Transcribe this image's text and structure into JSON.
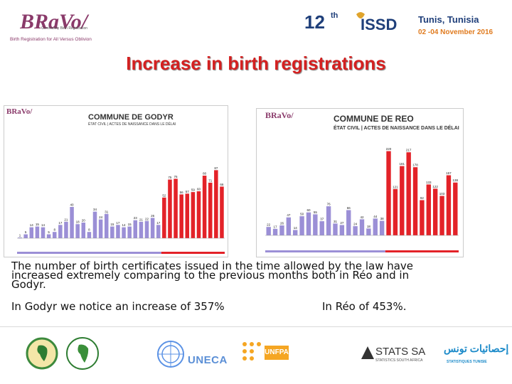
{
  "header": {
    "bravo_logo_text": "BRaVo/",
    "bravo_small": "Community Birth Registration",
    "bravo_tagline": "Birth Registration for All Versus Oblivion",
    "conference_number": "12",
    "conference_suffix": "th",
    "conference_logo": "ISSD",
    "conference_city": "Tunis, Tunisia",
    "conference_dates": "02 -04 November 2016"
  },
  "title": "Increase in birth registrations",
  "charts": [
    {
      "logo": "BRaVo/",
      "title": "COMMUNE DE GODYR",
      "subtitle": "ÉTAT CIVIL | ACTES DE NAISSANCE DANS LE DÉLAI"
    },
    {
      "logo": "BRaVo/",
      "title": "COMMUNE DE REO",
      "subtitle": "ÉTAT CIVIL | ACTES DE NAISSANCE DANS LE DÉLAI"
    }
  ],
  "chart_data": [
    {
      "type": "bar",
      "title": "COMMUNE DE GODYR",
      "subtitle": "ÉTAT CIVIL | ACTES DE NAISSANCE DANS LE DÉLAI",
      "values": [
        1,
        5,
        14,
        15,
        14,
        5,
        8,
        17,
        21,
        40,
        18,
        20,
        8,
        34,
        24,
        31,
        15,
        17,
        14,
        15,
        23,
        21,
        22,
        26,
        17,
        52,
        75,
        76,
        56,
        57,
        59,
        60,
        80,
        71,
        87,
        66
      ],
      "colors": [
        "#9b8fd6",
        "#9b8fd6",
        "#9b8fd6",
        "#9b8fd6",
        "#9b8fd6",
        "#9b8fd6",
        "#9b8fd6",
        "#9b8fd6",
        "#9b8fd6",
        "#9b8fd6",
        "#9b8fd6",
        "#9b8fd6",
        "#9b8fd6",
        "#9b8fd6",
        "#9b8fd6",
        "#9b8fd6",
        "#9b8fd6",
        "#9b8fd6",
        "#9b8fd6",
        "#9b8fd6",
        "#9b8fd6",
        "#9b8fd6",
        "#9b8fd6",
        "#9b8fd6",
        "#9b8fd6",
        "#e32228",
        "#e32228",
        "#e32228",
        "#e32228",
        "#e32228",
        "#e32228",
        "#e32228",
        "#e32228",
        "#e32228",
        "#e32228",
        "#e32228"
      ],
      "ylim": [
        0,
        100
      ]
    },
    {
      "type": "bar",
      "title": "COMMUNE DE REO",
      "subtitle": "ÉTAT CIVIL | ACTES DE NAISSANCE DANS LE DÉLAI",
      "values": [
        22,
        17,
        26,
        47,
        14,
        50,
        60,
        55,
        37,
        76,
        31,
        27,
        66,
        24,
        42,
        18,
        44,
        38,
        220,
        121,
        181,
        217,
        178,
        92,
        133,
        122,
        103,
        157,
        138
      ],
      "colors": [
        "#9b8fd6",
        "#9b8fd6",
        "#9b8fd6",
        "#9b8fd6",
        "#9b8fd6",
        "#9b8fd6",
        "#9b8fd6",
        "#9b8fd6",
        "#9b8fd6",
        "#9b8fd6",
        "#9b8fd6",
        "#9b8fd6",
        "#9b8fd6",
        "#9b8fd6",
        "#9b8fd6",
        "#9b8fd6",
        "#9b8fd6",
        "#9b8fd6",
        "#e32228",
        "#e32228",
        "#e32228",
        "#e32228",
        "#e32228",
        "#e32228",
        "#e32228",
        "#e32228",
        "#e32228",
        "#e32228",
        "#e32228"
      ],
      "ylim": [
        0,
        260
      ]
    }
  ],
  "body": {
    "line1": "The number of birth certificates issued in the time allowed by the law have",
    "line2": "increased extremely comparing to the previous months both in Réo and in",
    "line3": "Godyr.",
    "godyr_increase": "In Godyr we notice an increase of 357%",
    "reo_increase": "In Réo of 453%."
  },
  "footer": {
    "logos": [
      "african-union-logo",
      "african-development-bank-logo",
      "united-nations-logo",
      "uneca-logo",
      "unfpa-logo",
      "stats-sa-logo",
      "statistiques-tunisie-logo"
    ],
    "uneca": "UNECA",
    "unfpa": "UNFPA",
    "stats_sa": "STATS SA",
    "stats_sa_sub": "STATISTICS SOUTH AFRICA",
    "tunisie_arabic": "إحصائيات تونس",
    "tunisie_sub": "STATISTIQUES TUNISIE"
  },
  "colors": {
    "title_red": "#d42020",
    "bar_before": "#9b8fd6",
    "bar_after": "#e32228",
    "brand_purple": "#8a3a6a",
    "conf_blue": "#1f3f7a",
    "conf_orange": "#e07b1f"
  }
}
